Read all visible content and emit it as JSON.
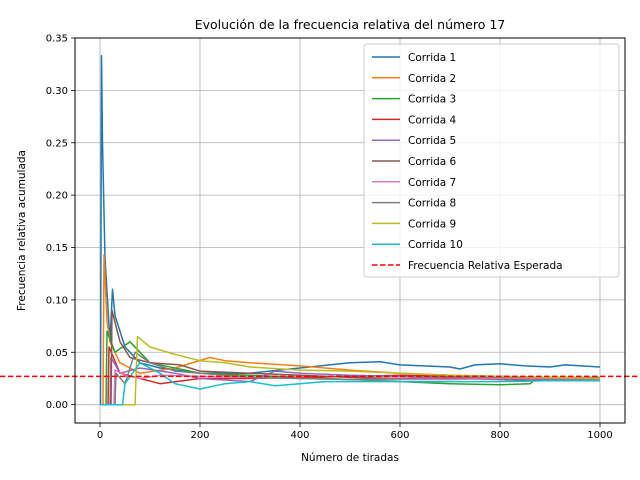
{
  "chart_data": {
    "type": "line",
    "title": "Evolución de la frecuencia relativa del número 17",
    "xlabel": "Número de tiradas",
    "ylabel": "Frecuencia relativa acumulada",
    "xlim": [
      -50,
      1050
    ],
    "ylim": [
      -0.0175,
      0.35
    ],
    "x_ticks": [
      0,
      200,
      400,
      600,
      800,
      1000
    ],
    "y_ticks": [
      0.0,
      0.05,
      0.1,
      0.15,
      0.2,
      0.25,
      0.3,
      0.35
    ],
    "y_tick_labels": [
      "0.00",
      "0.05",
      "0.10",
      "0.15",
      "0.20",
      "0.25",
      "0.30",
      "0.35"
    ],
    "grid": true,
    "legend_position": "top-right",
    "n_tiradas": 1000,
    "series": [
      {
        "name": "Corrida 1",
        "color": "#1f77b4",
        "final": 0.036,
        "x": [
          1,
          3,
          5,
          10,
          20,
          25,
          30,
          50,
          80,
          120,
          200,
          300,
          400,
          500,
          560,
          600,
          700,
          720,
          750,
          800,
          850,
          900,
          930,
          1000
        ],
        "y": [
          0.0,
          0.333,
          0.25,
          0.14,
          0.06,
          0.11,
          0.085,
          0.055,
          0.04,
          0.035,
          0.03,
          0.03,
          0.035,
          0.04,
          0.041,
          0.038,
          0.036,
          0.034,
          0.038,
          0.039,
          0.037,
          0.036,
          0.038,
          0.036
        ]
      },
      {
        "name": "Corrida 2",
        "color": "#ff7f0e",
        "final": 0.025,
        "x": [
          1,
          6,
          8,
          14,
          20,
          40,
          80,
          150,
          220,
          250,
          300,
          400,
          500,
          600,
          700,
          800,
          900,
          1000
        ],
        "y": [
          0.0,
          0.0,
          0.143,
          0.08,
          0.06,
          0.04,
          0.03,
          0.035,
          0.045,
          0.042,
          0.04,
          0.037,
          0.033,
          0.03,
          0.028,
          0.027,
          0.026,
          0.025
        ]
      },
      {
        "name": "Corrida 3",
        "color": "#2ca02c",
        "final": 0.023,
        "x": [
          1,
          12,
          14,
          30,
          60,
          100,
          200,
          300,
          400,
          500,
          600,
          700,
          800,
          860,
          870,
          900,
          1000
        ],
        "y": [
          0.0,
          0.0,
          0.07,
          0.05,
          0.06,
          0.04,
          0.03,
          0.028,
          0.026,
          0.024,
          0.022,
          0.02,
          0.019,
          0.02,
          0.024,
          0.024,
          0.023
        ]
      },
      {
        "name": "Corrida 4",
        "color": "#d62728",
        "final": 0.024,
        "x": [
          1,
          16,
          18,
          40,
          80,
          120,
          200,
          300,
          400,
          500,
          600,
          700,
          800,
          900,
          1000
        ],
        "y": [
          0.0,
          0.0,
          0.055,
          0.03,
          0.025,
          0.02,
          0.025,
          0.025,
          0.026,
          0.027,
          0.028,
          0.027,
          0.027,
          0.025,
          0.024
        ]
      },
      {
        "name": "Corrida 5",
        "color": "#9467bd",
        "final": 0.024,
        "x": [
          1,
          20,
          22,
          40,
          80,
          150,
          200,
          300,
          350,
          400,
          500,
          600,
          700,
          800,
          900,
          1000
        ],
        "y": [
          0.0,
          0.0,
          0.045,
          0.03,
          0.035,
          0.03,
          0.025,
          0.022,
          0.032,
          0.03,
          0.028,
          0.027,
          0.026,
          0.025,
          0.025,
          0.024
        ]
      },
      {
        "name": "Corrida 6",
        "color": "#8c564b",
        "final": 0.023,
        "x": [
          1,
          22,
          24,
          40,
          60,
          100,
          160,
          200,
          300,
          400,
          500,
          600,
          700,
          800,
          900,
          1000
        ],
        "y": [
          0.0,
          0.0,
          0.09,
          0.06,
          0.045,
          0.04,
          0.038,
          0.032,
          0.03,
          0.028,
          0.026,
          0.025,
          0.025,
          0.024,
          0.023,
          0.023
        ]
      },
      {
        "name": "Corrida 7",
        "color": "#e377c2",
        "final": 0.025,
        "x": [
          1,
          28,
          30,
          50,
          80,
          120,
          200,
          300,
          400,
          500,
          600,
          700,
          800,
          900,
          1000
        ],
        "y": [
          0.0,
          0.0,
          0.033,
          0.028,
          0.025,
          0.028,
          0.027,
          0.026,
          0.025,
          0.024,
          0.024,
          0.024,
          0.025,
          0.025,
          0.025
        ]
      },
      {
        "name": "Corrida 8",
        "color": "#7f7f7f",
        "final": 0.026,
        "x": [
          1,
          30,
          32,
          50,
          70,
          100,
          150,
          200,
          300,
          400,
          500,
          600,
          700,
          800,
          900,
          1000
        ],
        "y": [
          0.0,
          0.0,
          0.03,
          0.02,
          0.05,
          0.04,
          0.032,
          0.03,
          0.026,
          0.025,
          0.024,
          0.025,
          0.026,
          0.026,
          0.026,
          0.026
        ]
      },
      {
        "name": "Corrida 9",
        "color": "#bcbd22",
        "final": 0.025,
        "x": [
          1,
          70,
          75,
          100,
          150,
          200,
          250,
          300,
          400,
          500,
          600,
          700,
          800,
          900,
          1000
        ],
        "y": [
          0.0,
          0.0,
          0.065,
          0.055,
          0.048,
          0.042,
          0.04,
          0.036,
          0.033,
          0.032,
          0.03,
          0.028,
          0.027,
          0.026,
          0.025
        ]
      },
      {
        "name": "Corrida 10",
        "color": "#17becf",
        "final": 0.023,
        "x": [
          1,
          45,
          50,
          80,
          120,
          150,
          200,
          250,
          300,
          350,
          400,
          450,
          500,
          600,
          700,
          800,
          900,
          1000
        ],
        "y": [
          0.0,
          0.0,
          0.02,
          0.04,
          0.03,
          0.02,
          0.015,
          0.02,
          0.022,
          0.018,
          0.02,
          0.022,
          0.022,
          0.022,
          0.022,
          0.022,
          0.023,
          0.023
        ]
      }
    ],
    "reference_line": {
      "name": "Frecuencia Relativa Esperada",
      "value": 0.027027,
      "color": "#ff0000",
      "style": "dashed"
    }
  }
}
